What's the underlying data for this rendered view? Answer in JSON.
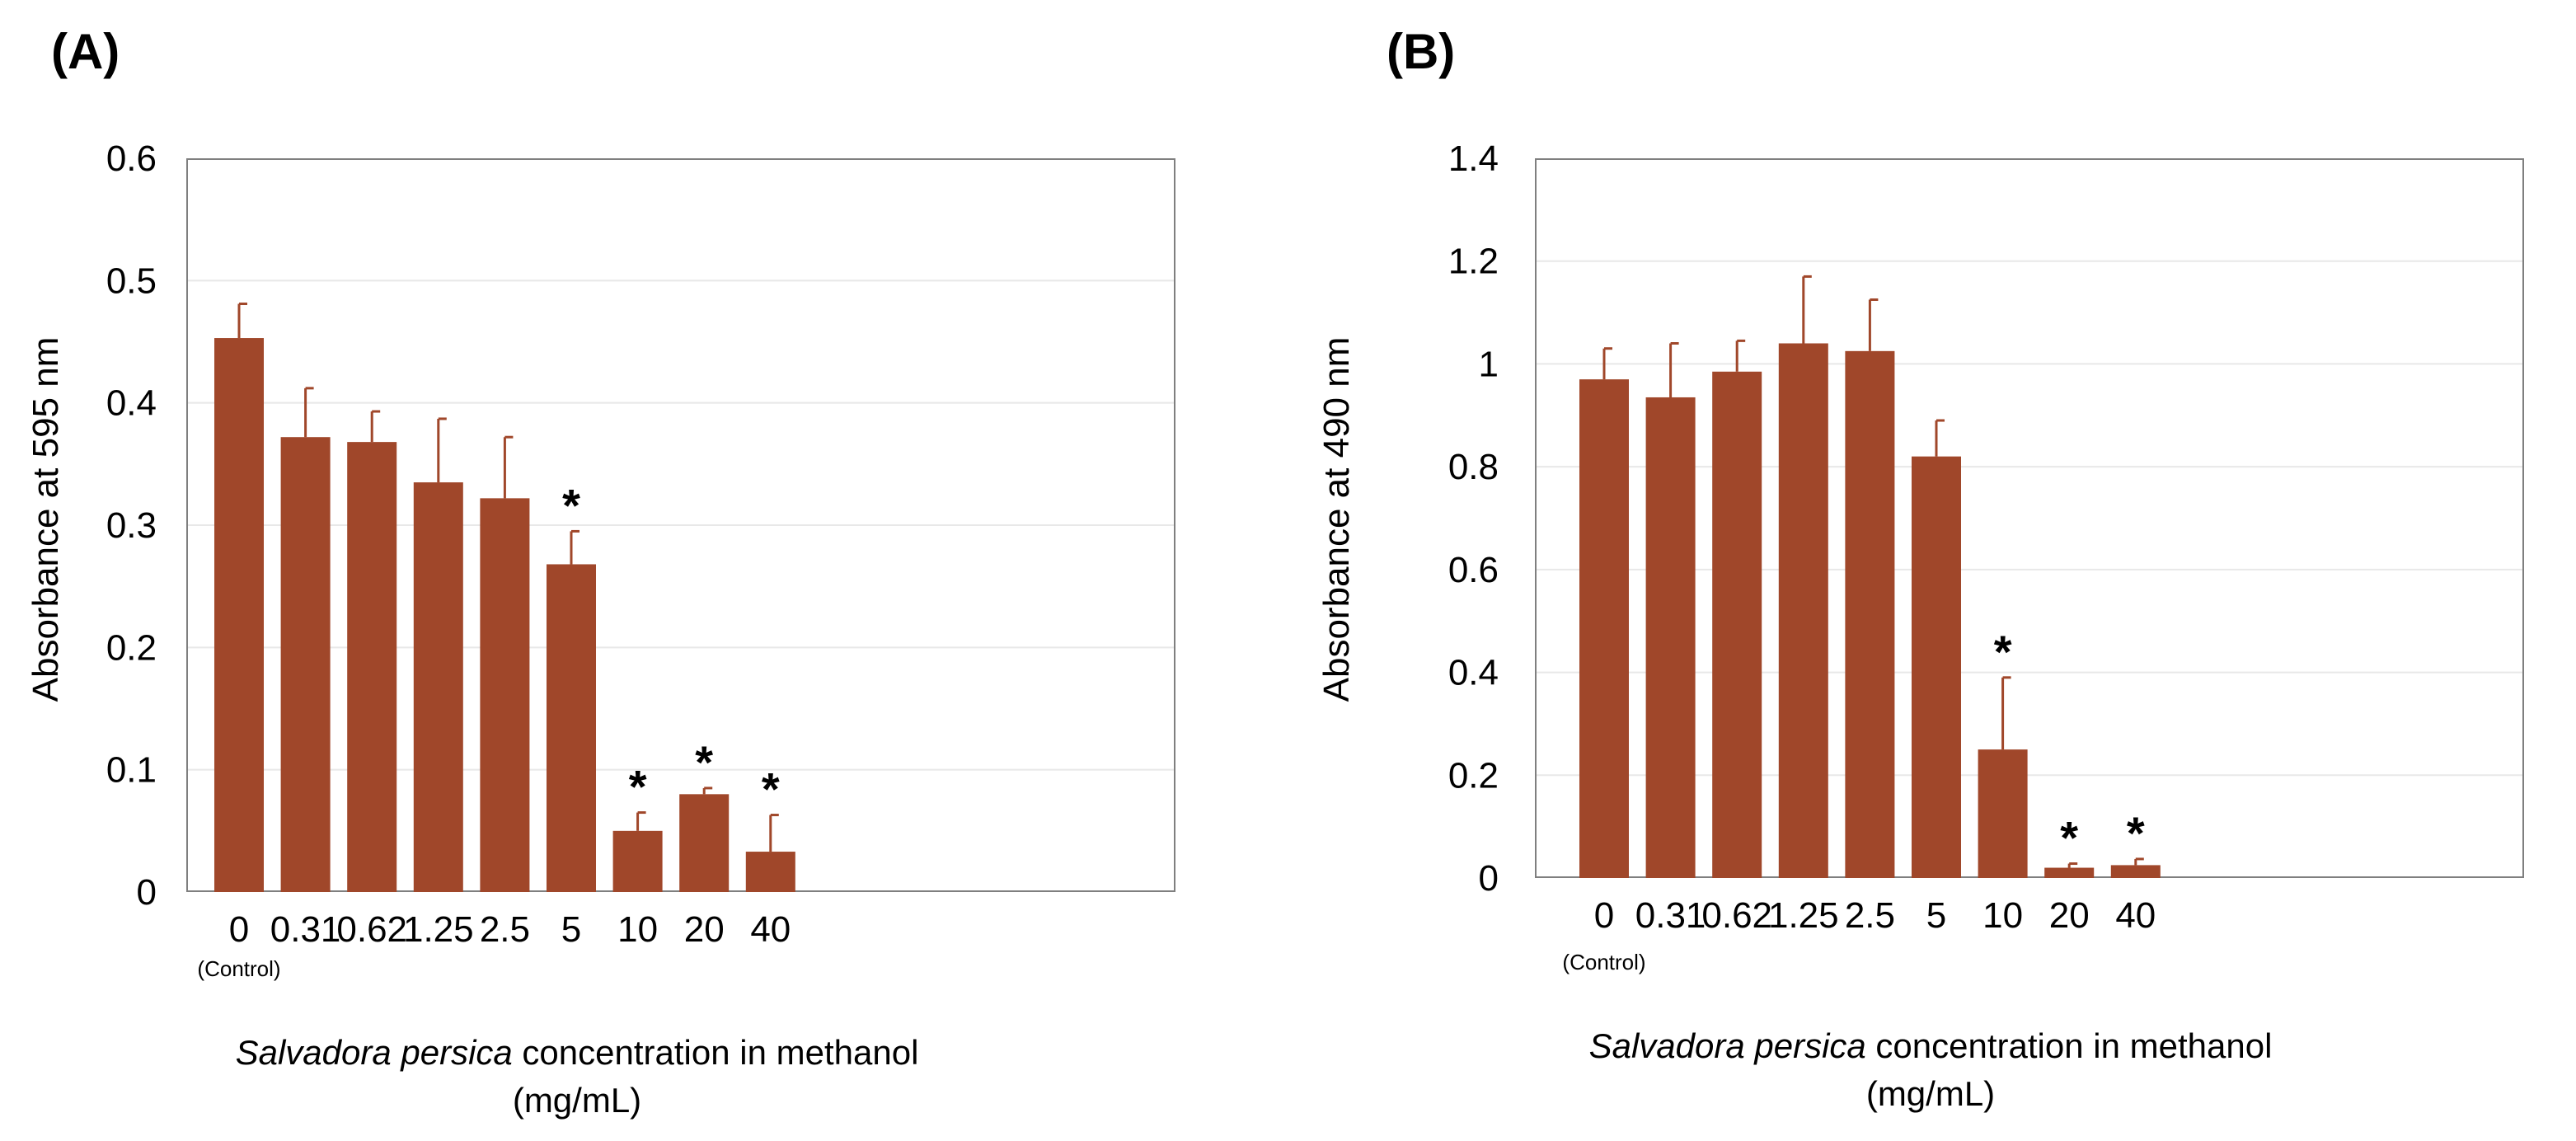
{
  "figure": {
    "panels": [
      {
        "label": "(A)",
        "ylabel": "Absorbance at 595 nm",
        "xlabel_italic": "Salvadora persica",
        "xlabel_rest": " concentration in methanol",
        "xlabel_unit": "(mg/mL)",
        "control_note": "(Control)"
      },
      {
        "label": "(B)",
        "ylabel": "Absorbance at 490 nm",
        "xlabel_italic": "Salvadora persica",
        "xlabel_rest": " concentration in methanol",
        "xlabel_unit": "(mg/mL)",
        "control_note": "(Control)"
      }
    ]
  },
  "colors": {
    "bar": "#A0472A",
    "gridline": "#e8e8e8",
    "frame": "#7f7f7f"
  },
  "chart_data": [
    {
      "type": "bar",
      "title": "(A)",
      "categories": [
        "0",
        "0.31",
        "0.62",
        "1.25",
        "2.5",
        "5",
        "10",
        "20",
        "40"
      ],
      "values": [
        0.453,
        0.372,
        0.368,
        0.335,
        0.322,
        0.268,
        0.05,
        0.08,
        0.033
      ],
      "errors": [
        0.028,
        0.04,
        0.025,
        0.052,
        0.05,
        0.027,
        0.015,
        0.005,
        0.03
      ],
      "significant": [
        false,
        false,
        false,
        false,
        false,
        true,
        true,
        true,
        true
      ],
      "significance_marker": "*",
      "xlabel": "Salvadora persica concentration in methanol (mg/mL)",
      "ylabel": "Absorbance at 595 nm",
      "ylim": [
        0,
        0.6
      ],
      "yticks": [
        "0",
        "0.1",
        "0.2",
        "0.3",
        "0.4",
        "0.5",
        "0.6"
      ],
      "grid": true
    },
    {
      "type": "bar",
      "title": "(B)",
      "categories": [
        "0",
        "0.31",
        "0.62",
        "1.25",
        "2.5",
        "5",
        "10",
        "20",
        "40"
      ],
      "values": [
        0.97,
        0.935,
        0.985,
        1.04,
        1.025,
        0.82,
        0.25,
        0.02,
        0.025
      ],
      "errors": [
        0.06,
        0.105,
        0.06,
        0.13,
        0.1,
        0.07,
        0.14,
        0.008,
        0.012
      ],
      "significant": [
        false,
        false,
        false,
        false,
        false,
        false,
        true,
        true,
        true
      ],
      "significance_marker": "*",
      "xlabel": "Salvadora persica concentration in methanol (mg/mL)",
      "ylabel": "Absorbance at 490 nm",
      "ylim": [
        0,
        1.4
      ],
      "yticks": [
        "0",
        "0.2",
        "0.4",
        "0.6",
        "0.8",
        "1",
        "1.2",
        "1.4"
      ],
      "grid": true
    }
  ]
}
